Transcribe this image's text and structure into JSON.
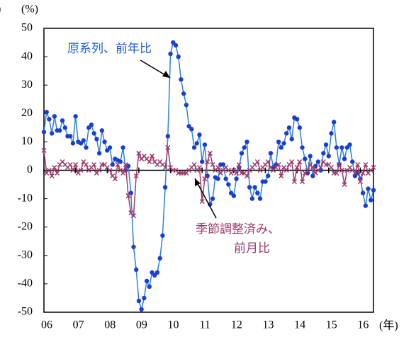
{
  "chart_data": {
    "type": "line",
    "y_label": "(%)",
    "y_label_fragment": ")",
    "x_label": "(年)",
    "annotations": [
      {
        "text": "原系列、前年比",
        "color": "#1f5fd0"
      },
      {
        "text": "季節調整済み、",
        "color": "#9b3a6c"
      },
      {
        "text": "前月比",
        "color": "#9b3a6c"
      }
    ],
    "x": [
      0,
      1,
      2,
      3,
      4,
      5,
      6,
      7,
      8,
      9,
      10,
      11,
      12,
      13,
      14,
      15,
      16,
      17,
      18,
      19,
      20,
      21,
      22,
      23,
      24,
      25,
      26,
      27,
      28,
      29,
      30,
      31,
      32,
      33,
      34,
      35,
      36,
      37,
      38,
      39,
      40,
      41,
      42,
      43,
      44,
      45,
      46,
      47,
      48,
      49,
      50,
      51,
      52,
      53,
      54,
      55,
      56,
      57,
      58,
      59,
      60,
      61,
      62,
      63,
      64,
      65,
      66,
      67,
      68,
      69,
      70,
      71,
      72,
      73,
      74,
      75,
      76,
      77,
      78,
      79,
      80,
      81,
      82,
      83,
      84,
      85,
      86,
      87,
      88,
      89,
      90,
      91,
      92,
      93,
      94,
      95,
      96,
      97,
      98,
      99,
      100,
      101,
      102,
      103,
      104,
      105,
      106,
      107,
      108,
      109,
      110,
      111,
      112,
      113,
      114,
      115,
      116,
      117,
      118,
      119,
      120,
      121,
      122,
      123,
      124,
      125
    ],
    "xlim": [
      0,
      125
    ],
    "xticks": [
      {
        "value": 0,
        "label": "06"
      },
      {
        "value": 12,
        "label": "07"
      },
      {
        "value": 24,
        "label": "08"
      },
      {
        "value": 36,
        "label": "09"
      },
      {
        "value": 48,
        "label": "10"
      },
      {
        "value": 60,
        "label": "11"
      },
      {
        "value": 72,
        "label": "12"
      },
      {
        "value": 84,
        "label": "13"
      },
      {
        "value": 96,
        "label": "14"
      },
      {
        "value": 108,
        "label": "15"
      },
      {
        "value": 120,
        "label": "16"
      }
    ],
    "ylim": [
      -50,
      50
    ],
    "yticks": [
      -50,
      -40,
      -30,
      -20,
      -10,
      0,
      10,
      20,
      30,
      40,
      50
    ],
    "series": [
      {
        "name": "原系列、前年比",
        "color": "#2f7fe0",
        "marker_color": "#1a3fd0",
        "marker": "circle",
        "values": [
          13.5,
          20.5,
          18,
          13,
          19,
          14,
          14,
          17.5,
          15,
          12,
          12,
          9.5,
          19,
          10,
          9.5,
          10.5,
          8,
          15,
          16,
          13,
          11,
          6,
          14,
          10,
          7,
          8,
          2,
          4,
          3.5,
          3,
          8,
          0,
          1.5,
          -8,
          -27,
          -35,
          -46,
          -49,
          -45,
          -39,
          -41,
          -36,
          -37,
          -36,
          -31,
          -23,
          -6,
          12,
          41,
          45,
          44,
          40,
          32,
          27,
          23,
          15.5,
          14.5,
          8,
          9.5,
          12.5,
          3,
          9,
          -2,
          -12,
          -10,
          -2.5,
          -3,
          2,
          2,
          -3,
          -5,
          -8,
          -9,
          -3,
          1,
          6,
          8,
          10,
          -6,
          -10,
          -6,
          -8,
          -10,
          -4,
          -4,
          -2,
          6,
          1,
          2,
          10,
          8,
          9.5,
          13,
          15,
          11,
          18.5,
          18,
          15,
          8,
          4,
          -1,
          5,
          -2,
          1.5,
          3,
          0,
          6,
          9,
          5,
          13,
          17,
          8,
          2,
          8,
          4,
          8,
          9,
          3,
          -2,
          -1,
          -3,
          -8,
          -12.5,
          -6.5,
          -10.5,
          -7
        ]
      },
      {
        "name": "季節調整済み、前月比",
        "color": "#9b3a6c",
        "marker_color": "#9b3a6c",
        "marker": "x",
        "values": [
          7,
          -1,
          0,
          -2,
          1,
          -1,
          2,
          3,
          2,
          1,
          2,
          0,
          2,
          -1,
          0,
          3,
          2,
          0,
          1,
          2,
          -1,
          0,
          2,
          2,
          1,
          0,
          -2,
          -3,
          2,
          0,
          -1,
          2,
          -9,
          -15,
          -16,
          -2,
          6,
          4,
          5,
          4,
          3,
          5,
          3,
          2,
          3,
          2,
          1,
          8,
          1,
          0,
          0,
          -1,
          -1,
          -1,
          -1,
          0,
          1,
          2,
          0,
          1,
          -11,
          -3,
          3,
          6,
          2,
          0,
          1,
          -1,
          0,
          1,
          0,
          -1,
          0,
          -1,
          2,
          -1,
          -1,
          -2,
          0,
          1,
          2,
          3,
          0,
          1,
          2,
          3,
          1,
          0,
          1,
          2,
          -2,
          1,
          0,
          2,
          3,
          -4,
          1,
          3,
          -4,
          -1,
          0,
          2,
          1,
          -1,
          0,
          1,
          3,
          2,
          2,
          1,
          -1,
          -1,
          2,
          0,
          -5,
          0,
          1,
          0,
          -1,
          2,
          -4,
          -1,
          2,
          -1,
          0,
          1
        ]
      }
    ]
  }
}
